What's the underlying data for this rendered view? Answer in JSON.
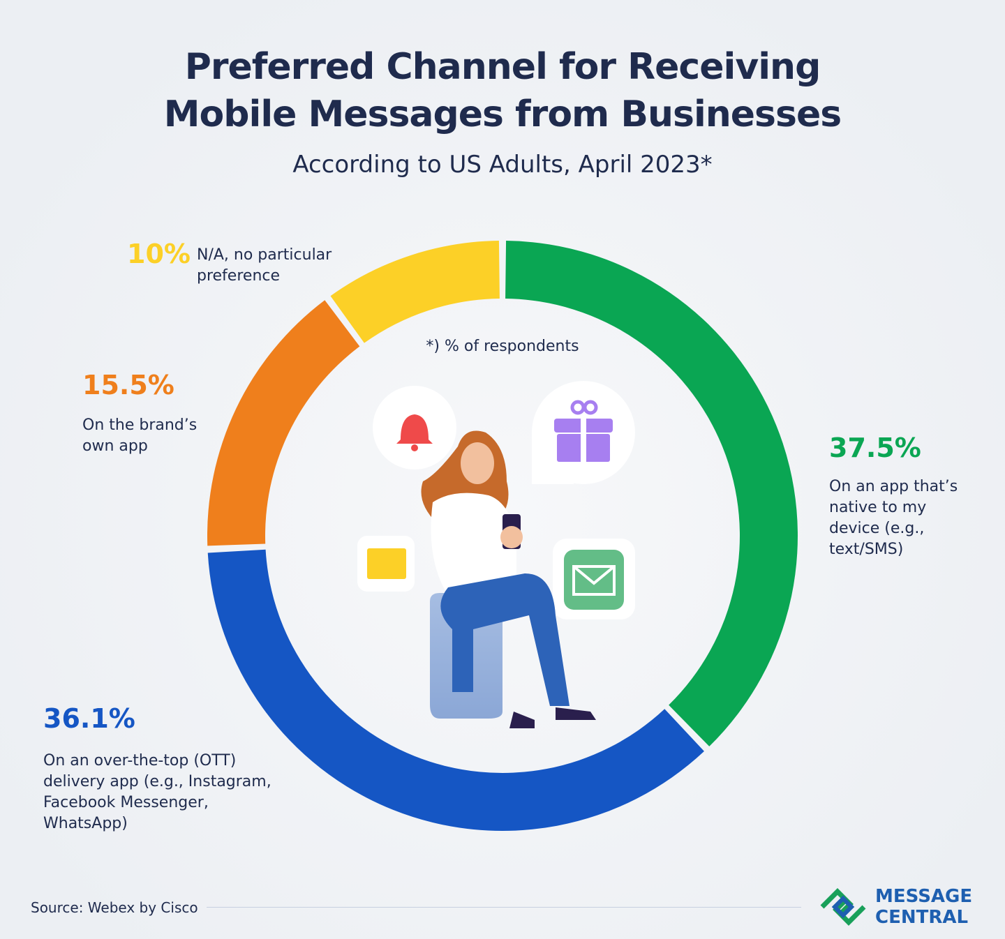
{
  "chart_data": {
    "type": "donut",
    "title": "Preferred Channel for Receiving Mobile Messages from Businesses",
    "subtitle": "According to US Adults, April 2023*",
    "note": "*) % of respondents",
    "categories": [
      "On an app that’s native to my device (e.g., text/SMS)",
      "On an over-the-top (OTT) delivery app (e.g., Instagram, Facebook Messenger, WhatsApp)",
      "On the brand’s own app",
      "N/A, no particular preference"
    ],
    "values": [
      37.5,
      36.1,
      15.5,
      10
    ],
    "value_labels": [
      "37.5%",
      "36.1%",
      "15.5%",
      "10%"
    ],
    "colors": [
      "#0aa653",
      "#1556c4",
      "#ef7f1c",
      "#fcd027"
    ],
    "source": "Source: Webex by Cisco"
  },
  "brand": {
    "line1": "MESSAGE",
    "line2": "CENTRAL"
  }
}
